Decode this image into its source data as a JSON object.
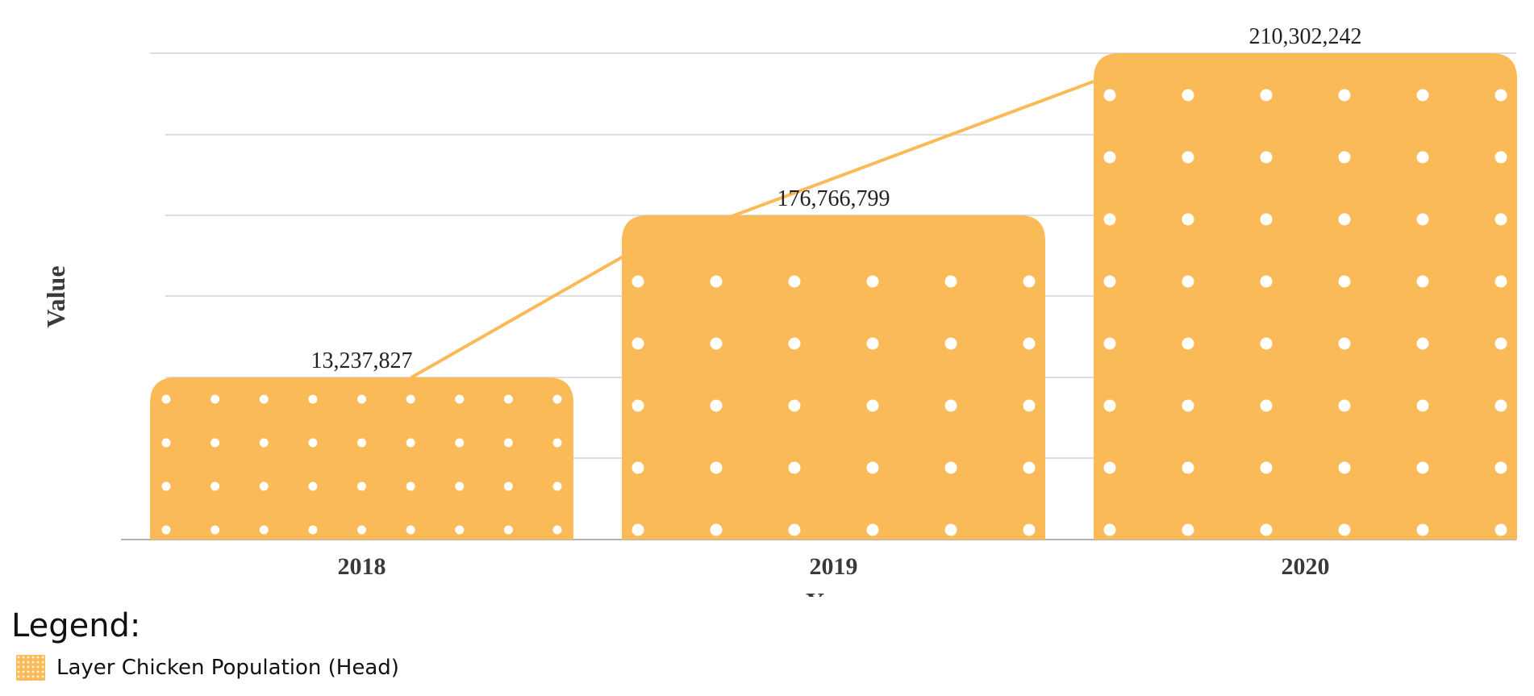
{
  "chart_data": {
    "type": "bar",
    "categories": [
      "2018",
      "2019",
      "2020"
    ],
    "series": [
      {
        "name": "Layer Chicken Population (Head)",
        "values": [
          13237827,
          176766799,
          210302242
        ]
      }
    ],
    "data_labels": [
      "13,237,827",
      "176,766,799",
      "210,302,242"
    ],
    "xlabel": "Year",
    "ylabel": "Value",
    "grid": true,
    "trend_line": true,
    "bar_color": "#FBBA58",
    "dot_color": "#FFFFFF",
    "grid_color": "#D3D3D3",
    "legend_position": "bottom-left"
  },
  "legend": {
    "title": "Legend:",
    "items": [
      {
        "label": "Layer Chicken Population (Head)",
        "color": "#FBBA58"
      }
    ]
  }
}
